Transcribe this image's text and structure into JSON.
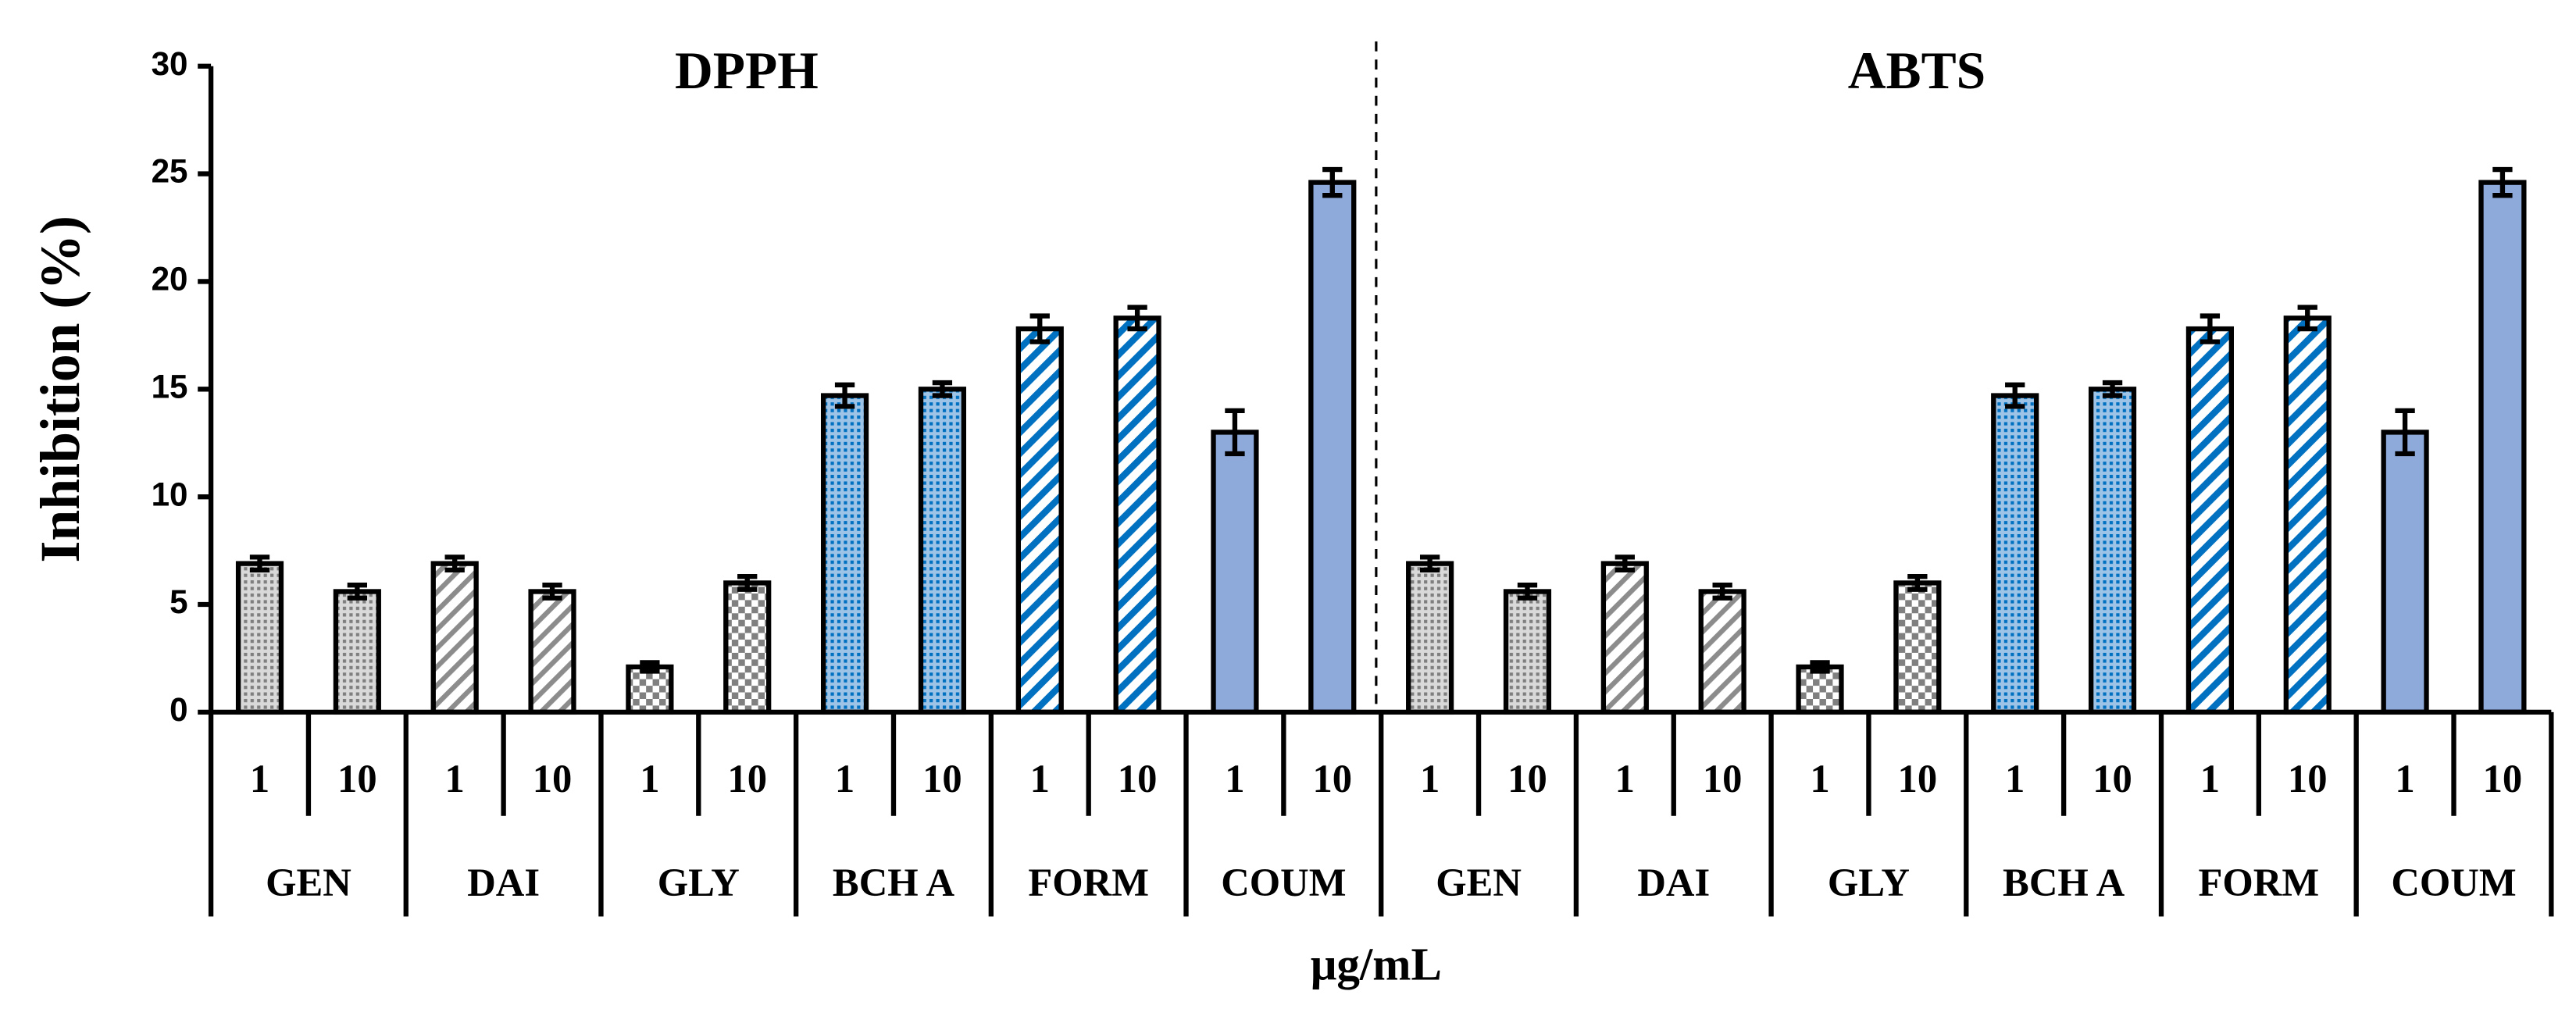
{
  "chart_data": {
    "type": "bar",
    "y_label": "Inhibition (%)",
    "x_label": "μg/mL",
    "sections": [
      "DPPH",
      "ABTS"
    ],
    "groups": [
      "GEN",
      "DAI",
      "GLY",
      "BCH A",
      "FORM",
      "COUM",
      "GEN",
      "DAI",
      "GLY",
      "BCH A",
      "FORM",
      "COUM"
    ],
    "categories": [
      "1",
      "10",
      "1",
      "10",
      "1",
      "10",
      "1",
      "10",
      "1",
      "10",
      "1",
      "10",
      "1",
      "10",
      "1",
      "10",
      "1",
      "10",
      "1",
      "10",
      "1",
      "10",
      "1",
      "10"
    ],
    "values": [
      6.9,
      5.6,
      6.9,
      5.6,
      2.1,
      6.0,
      14.7,
      15.0,
      17.8,
      18.3,
      13.0,
      24.6,
      6.9,
      5.6,
      6.9,
      5.6,
      2.1,
      6.0,
      14.7,
      15.0,
      17.8,
      18.3,
      13.0,
      24.6
    ],
    "errors": [
      0.3,
      0.3,
      0.3,
      0.3,
      0.2,
      0.3,
      0.5,
      0.3,
      0.6,
      0.5,
      1.0,
      0.6,
      0.3,
      0.3,
      0.3,
      0.3,
      0.2,
      0.3,
      0.5,
      0.3,
      0.6,
      0.5,
      1.0,
      0.6
    ],
    "group_fills": [
      "dots-gray",
      "stripes-gray",
      "checker-gray",
      "dots-blue",
      "stripes-blue",
      "solid-blue",
      "dots-gray",
      "stripes-gray",
      "checker-gray",
      "dots-blue",
      "stripes-blue",
      "solid-blue"
    ],
    "ylim": [
      0,
      30
    ],
    "yticks": [
      0,
      5,
      10,
      15,
      20,
      25,
      30
    ]
  }
}
